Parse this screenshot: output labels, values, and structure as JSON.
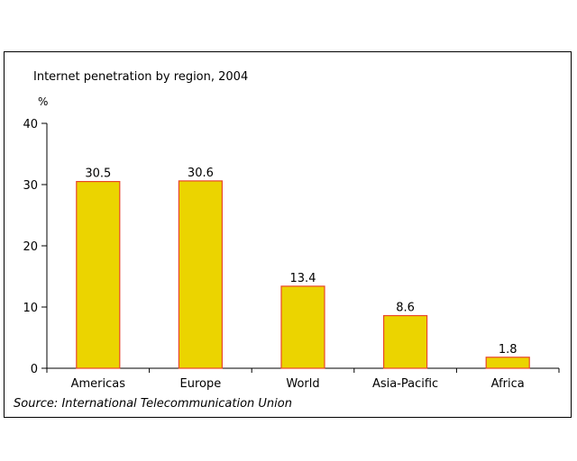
{
  "chart_data": {
    "type": "bar",
    "title": "Internet penetration by region, 2004",
    "ylabel": "%",
    "xlabel": "",
    "categories": [
      "Americas",
      "Europe",
      "World",
      "Asia-Pacific",
      "Africa"
    ],
    "values": [
      30.5,
      30.6,
      13.4,
      8.6,
      1.8
    ],
    "data_labels": [
      "30.5",
      "30.6",
      "13.4",
      "8.6",
      "1.8"
    ],
    "ylim": [
      0,
      40
    ],
    "yticks": [
      0,
      10,
      20,
      30,
      40
    ],
    "grid": false,
    "legend": "none",
    "bar_fill": "#ebd400",
    "bar_stroke": "#e8472a",
    "source": "Source: International Telecommunication Union"
  }
}
